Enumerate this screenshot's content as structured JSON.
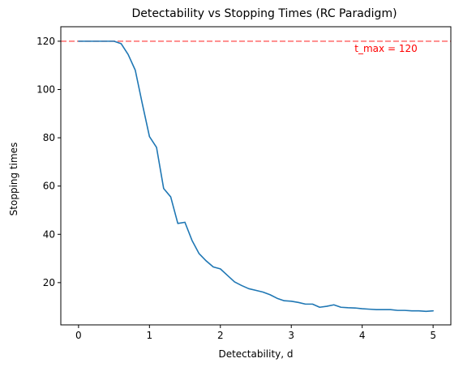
{
  "chart_data": {
    "type": "line",
    "title": "Detectability vs Stopping Times (RC Paradigm)",
    "xlabel": "Detectability, d",
    "ylabel": "Stopping times",
    "xlim": [
      -0.25,
      5.25
    ],
    "ylim": [
      2.5,
      126
    ],
    "xticks": [
      0,
      1,
      2,
      3,
      4,
      5
    ],
    "yticks": [
      20,
      40,
      60,
      80,
      100,
      120
    ],
    "grid": false,
    "series": [
      {
        "color": "#1f77b4",
        "x": [
          0.0,
          0.1,
          0.2,
          0.3,
          0.4,
          0.5,
          0.6,
          0.7,
          0.8,
          0.9,
          1.0,
          1.1,
          1.2,
          1.3,
          1.4,
          1.5,
          1.6,
          1.7,
          1.8,
          1.9,
          2.0,
          2.1,
          2.2,
          2.3,
          2.4,
          2.5,
          2.6,
          2.7,
          2.8,
          2.9,
          3.0,
          3.1,
          3.2,
          3.3,
          3.4,
          3.5,
          3.6,
          3.7,
          3.8,
          3.9,
          4.0,
          4.1,
          4.2,
          4.3,
          4.4,
          4.5,
          4.6,
          4.7,
          4.8,
          4.9,
          5.0
        ],
        "y": [
          120,
          120,
          120,
          120,
          120,
          120,
          119,
          114.5,
          108,
          94,
          80.5,
          76,
          59,
          55.5,
          44.5,
          45,
          37.5,
          32,
          29,
          26.5,
          25.7,
          23,
          20.3,
          18.8,
          17.5,
          16.8,
          16.1,
          15,
          13.5,
          12.5,
          12.3,
          11.8,
          11.1,
          11.1,
          9.8,
          10.2,
          10.8,
          9.8,
          9.6,
          9.5,
          9.2,
          9.0,
          8.8,
          8.8,
          8.8,
          8.5,
          8.5,
          8.3,
          8.3,
          8.1,
          8.3
        ]
      }
    ],
    "reference_line": {
      "y": 120,
      "color": "#ff6b6b",
      "label": "t_max = 120",
      "label_color": "#ff0000"
    }
  }
}
